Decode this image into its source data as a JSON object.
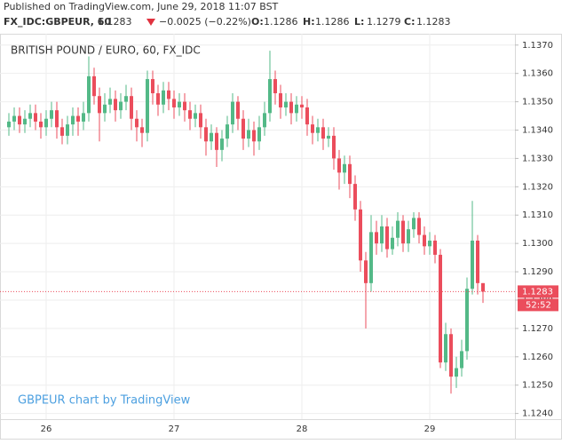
{
  "header": {
    "published": "Published on TradingView.com, June 29, 2018 11:07 BST",
    "symbol": "FX_IDC:GBPEUR, 60",
    "last": "1.1283",
    "change": "−0.0025 (−0.22%)",
    "ohlc": [
      {
        "label": "O:",
        "value": "1.1286"
      },
      {
        "label": "H:",
        "value": "1.1286"
      },
      {
        "label": "L:",
        "value": "1.1279"
      },
      {
        "label": "C:",
        "value": "1.1283"
      }
    ]
  },
  "chart_data": {
    "type": "candlestick",
    "title": "BRITISH POUND / EURO, 60, FX_IDC",
    "watermark": "GBPEUR chart by TradingView",
    "categories": [
      null,
      null,
      null,
      null,
      null,
      null,
      null,
      "26",
      null,
      null,
      null,
      null,
      null,
      null,
      null,
      null,
      null,
      null,
      null,
      null,
      null,
      null,
      null,
      null,
      null,
      null,
      null,
      null,
      null,
      null,
      null,
      "27",
      null,
      null,
      null,
      null,
      null,
      null,
      null,
      null,
      null,
      null,
      null,
      null,
      null,
      null,
      null,
      null,
      null,
      null,
      null,
      null,
      null,
      null,
      null,
      "28",
      null,
      null,
      null,
      null,
      null,
      null,
      null,
      null,
      null,
      null,
      null,
      null,
      null,
      null,
      null,
      null,
      null,
      null,
      null,
      null,
      null,
      null,
      null,
      "29",
      null,
      null,
      null,
      null,
      null,
      null,
      null,
      null,
      null,
      null
    ],
    "open": [
      1.1341,
      1.1343,
      1.1345,
      1.1342,
      1.1344,
      1.1346,
      1.1343,
      1.1341,
      1.1344,
      1.1347,
      1.1341,
      1.1338,
      1.1342,
      1.1345,
      1.1343,
      1.1346,
      1.1359,
      1.1352,
      1.1346,
      1.1349,
      1.1351,
      1.1347,
      1.135,
      1.1352,
      1.1344,
      1.1341,
      1.1339,
      1.1358,
      1.1353,
      1.1349,
      1.1354,
      1.1351,
      1.1348,
      1.135,
      1.1347,
      1.1344,
      1.1346,
      1.1341,
      1.1336,
      1.1339,
      1.1333,
      1.1337,
      1.1342,
      1.135,
      1.1344,
      1.1337,
      1.134,
      1.1336,
      1.1341,
      1.1346,
      1.1358,
      1.1353,
      1.1348,
      1.135,
      1.1346,
      1.1349,
      1.1348,
      1.1342,
      1.1339,
      1.1341,
      1.1337,
      1.1338,
      1.133,
      1.1325,
      1.1328,
      1.1321,
      1.1312,
      1.1294,
      1.1286,
      1.1304,
      1.13,
      1.1306,
      1.1298,
      1.1302,
      1.1308,
      1.13,
      1.1305,
      1.1309,
      1.1303,
      1.1299,
      1.1301,
      1.1296,
      1.1258,
      1.1268,
      1.1253,
      1.1256,
      1.1262,
      1.1284,
      1.1301,
      1.1286
    ],
    "high": [
      1.1346,
      1.1348,
      1.1348,
      1.1347,
      1.1349,
      1.1349,
      1.1346,
      1.1347,
      1.135,
      1.135,
      1.1344,
      1.1345,
      1.1348,
      1.1348,
      1.135,
      1.1366,
      1.1362,
      1.1355,
      1.1353,
      1.1355,
      1.1354,
      1.1353,
      1.1356,
      1.1355,
      1.1347,
      1.1344,
      1.1361,
      1.1361,
      1.1356,
      1.1357,
      1.1357,
      1.1354,
      1.1353,
      1.1353,
      1.135,
      1.1349,
      1.1349,
      1.1344,
      1.1342,
      1.1341,
      1.134,
      1.1345,
      1.1353,
      1.1352,
      1.1347,
      1.1344,
      1.1343,
      1.1345,
      1.135,
      1.1368,
      1.1361,
      1.1356,
      1.1353,
      1.1353,
      1.1352,
      1.1352,
      1.1351,
      1.1345,
      1.1344,
      1.1344,
      1.1341,
      1.1341,
      1.1333,
      1.1331,
      1.1331,
      1.1324,
      1.1315,
      1.1297,
      1.131,
      1.1308,
      1.131,
      1.1309,
      1.1306,
      1.1311,
      1.131,
      1.1308,
      1.1311,
      1.1311,
      1.1306,
      1.1304,
      1.1303,
      1.1298,
      1.1272,
      1.127,
      1.126,
      1.1266,
      1.1288,
      1.1315,
      1.1303,
      1.1286
    ],
    "low": [
      1.1338,
      1.134,
      1.1339,
      1.1339,
      1.1341,
      1.134,
      1.1337,
      1.1338,
      1.1341,
      1.1337,
      1.1335,
      1.1335,
      1.1338,
      1.1338,
      1.134,
      1.1343,
      1.1349,
      1.1336,
      1.1343,
      1.1346,
      1.1343,
      1.1344,
      1.1347,
      1.134,
      1.1336,
      1.1334,
      1.1336,
      1.1349,
      1.1345,
      1.1346,
      1.1347,
      1.1344,
      1.1345,
      1.1343,
      1.134,
      1.1341,
      1.1337,
      1.1331,
      1.1333,
      1.1327,
      1.1329,
      1.1334,
      1.1339,
      1.134,
      1.1333,
      1.1334,
      1.1331,
      1.1333,
      1.1338,
      1.1343,
      1.1349,
      1.1344,
      1.1345,
      1.1342,
      1.1343,
      1.1344,
      1.1338,
      1.1335,
      1.1336,
      1.1333,
      1.1334,
      1.1326,
      1.1319,
      1.1321,
      1.1316,
      1.1308,
      1.129,
      1.127,
      1.1283,
      1.1296,
      1.1297,
      1.1295,
      1.1296,
      1.1299,
      1.1297,
      1.1297,
      1.1302,
      1.13,
      1.1296,
      1.1296,
      1.1293,
      1.1256,
      1.1255,
      1.1247,
      1.1249,
      1.1253,
      1.1259,
      1.1282,
      1.1282,
      1.1279
    ],
    "close": [
      1.1343,
      1.1345,
      1.1342,
      1.1344,
      1.1346,
      1.1343,
      1.1341,
      1.1344,
      1.1347,
      1.1341,
      1.1338,
      1.1342,
      1.1345,
      1.1343,
      1.1346,
      1.1359,
      1.1352,
      1.1346,
      1.1349,
      1.1351,
      1.1347,
      1.135,
      1.1352,
      1.1344,
      1.1341,
      1.1339,
      1.1358,
      1.1353,
      1.1349,
      1.1354,
      1.1351,
      1.1348,
      1.135,
      1.1347,
      1.1344,
      1.1346,
      1.1341,
      1.1336,
      1.1339,
      1.1333,
      1.1337,
      1.1342,
      1.135,
      1.1344,
      1.1337,
      1.134,
      1.1336,
      1.1341,
      1.1346,
      1.1358,
      1.1353,
      1.1348,
      1.135,
      1.1346,
      1.1349,
      1.1348,
      1.1342,
      1.1339,
      1.1341,
      1.1337,
      1.1338,
      1.133,
      1.1325,
      1.1328,
      1.1321,
      1.1312,
      1.1294,
      1.1286,
      1.1304,
      1.13,
      1.1306,
      1.1298,
      1.1302,
      1.1308,
      1.13,
      1.1305,
      1.1309,
      1.1303,
      1.1299,
      1.1301,
      1.1296,
      1.1258,
      1.1268,
      1.1253,
      1.1256,
      1.1262,
      1.1284,
      1.1301,
      1.1286,
      1.1283
    ],
    "up_color": "#53b987",
    "down_color": "#eb4d5c",
    "ylim": [
      1.1238,
      1.1374
    ],
    "yticks": [
      {
        "value": 1.124,
        "label": "1.1240"
      },
      {
        "value": 1.125,
        "label": "1.1250"
      },
      {
        "value": 1.126,
        "label": "1.1260"
      },
      {
        "value": 1.127,
        "label": "1.1270"
      },
      {
        "value": 1.128,
        "label": "1.1280"
      },
      {
        "value": 1.129,
        "label": "1.1290"
      },
      {
        "value": 1.13,
        "label": "1.1300"
      },
      {
        "value": 1.131,
        "label": "1.1310"
      },
      {
        "value": 1.132,
        "label": "1.1320"
      },
      {
        "value": 1.133,
        "label": "1.1330"
      },
      {
        "value": 1.134,
        "label": "1.1340"
      },
      {
        "value": 1.135,
        "label": "1.1350"
      },
      {
        "value": 1.136,
        "label": "1.1360"
      },
      {
        "value": 1.137,
        "label": "1.1370"
      }
    ],
    "last_price": {
      "value": 1.1283,
      "label": "1.1283"
    },
    "countdown": "52:52",
    "grid": true
  }
}
